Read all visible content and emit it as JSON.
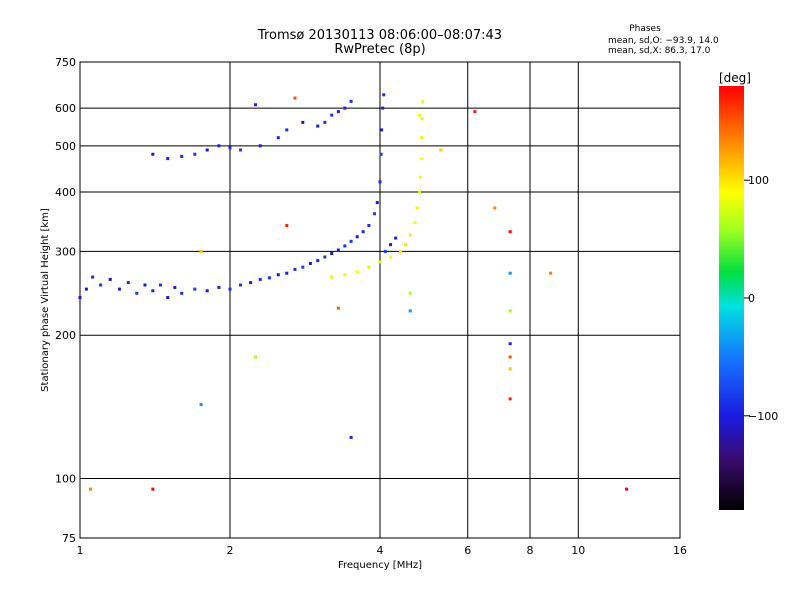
{
  "chart_data": {
    "type": "scatter",
    "title_line1": "Tromsø 20130113 08:06:00–08:07:43",
    "title_line2": "RwPretec (8p)",
    "xlabel": "Frequency [MHz]",
    "ylabel": "Stationary phase Virtual Height [km]",
    "x_scale": "log",
    "y_scale": "log",
    "xlim": [
      1,
      16
    ],
    "ylim": [
      75,
      750
    ],
    "x_ticks": [
      1,
      2,
      4,
      6,
      8,
      10,
      16
    ],
    "x_tick_labels": [
      "1",
      "2",
      "4",
      "6",
      "8",
      "10",
      "16"
    ],
    "y_ticks": [
      75,
      100,
      200,
      300,
      400,
      500,
      600,
      750
    ],
    "y_tick_labels": [
      "75",
      "100",
      "200",
      "300",
      "400",
      "500",
      "600",
      "750"
    ],
    "grid": true,
    "phases_header": "Phases",
    "stats_o": "mean, sd,O: −93.9, 14.0",
    "stats_x": "mean, sd,X:  86.3, 17.0",
    "colorbar": {
      "unit_label": "[deg]",
      "range": [
        -180,
        180
      ],
      "ticks": [
        100,
        0,
        -100
      ],
      "tick_labels": [
        "100",
        "0",
        "−100"
      ]
    },
    "series": [
      {
        "description_role": "O-mode lower trace",
        "phase_mean": -93.9,
        "points": [
          [
            1.0,
            240
          ],
          [
            1.03,
            250
          ],
          [
            1.06,
            265
          ],
          [
            1.1,
            255
          ],
          [
            1.15,
            262
          ],
          [
            1.2,
            250
          ],
          [
            1.25,
            258
          ],
          [
            1.3,
            245
          ],
          [
            1.35,
            255
          ],
          [
            1.4,
            248
          ],
          [
            1.45,
            255
          ],
          [
            1.5,
            240
          ],
          [
            1.55,
            252
          ],
          [
            1.6,
            245
          ],
          [
            1.7,
            250
          ],
          [
            1.8,
            248
          ],
          [
            1.9,
            252
          ],
          [
            2.0,
            250
          ],
          [
            2.1,
            255
          ],
          [
            2.2,
            258
          ],
          [
            2.3,
            262
          ],
          [
            2.4,
            264
          ],
          [
            2.5,
            268
          ],
          [
            2.6,
            270
          ],
          [
            2.7,
            275
          ],
          [
            2.8,
            278
          ],
          [
            2.9,
            283
          ],
          [
            3.0,
            287
          ],
          [
            3.1,
            292
          ],
          [
            3.2,
            297
          ],
          [
            3.3,
            302
          ],
          [
            3.4,
            308
          ],
          [
            3.5,
            315
          ],
          [
            3.6,
            322
          ],
          [
            3.7,
            330
          ],
          [
            3.8,
            340
          ],
          [
            3.9,
            360
          ],
          [
            3.95,
            380
          ],
          [
            4.0,
            420
          ],
          [
            4.02,
            480
          ],
          [
            4.03,
            540
          ],
          [
            4.05,
            600
          ],
          [
            4.07,
            640
          ],
          [
            4.1,
            300
          ],
          [
            4.2,
            310
          ],
          [
            4.3,
            320
          ]
        ]
      },
      {
        "description_role": "O-mode upper trace",
        "phase_mean": -93.9,
        "points": [
          [
            1.4,
            480
          ],
          [
            1.5,
            470
          ],
          [
            1.6,
            475
          ],
          [
            1.7,
            480
          ],
          [
            1.8,
            490
          ],
          [
            1.9,
            500
          ],
          [
            2.0,
            495
          ],
          [
            2.1,
            490
          ],
          [
            2.3,
            500
          ],
          [
            2.5,
            520
          ],
          [
            2.6,
            540
          ],
          [
            2.8,
            560
          ],
          [
            3.0,
            550
          ],
          [
            3.1,
            560
          ],
          [
            3.2,
            580
          ],
          [
            3.3,
            590
          ],
          [
            3.4,
            600
          ],
          [
            3.5,
            620
          ]
        ]
      },
      {
        "description_role": "X-mode trace",
        "phase_mean": 86.3,
        "points": [
          [
            3.2,
            265
          ],
          [
            3.4,
            268
          ],
          [
            3.6,
            272
          ],
          [
            3.8,
            278
          ],
          [
            4.0,
            285
          ],
          [
            4.2,
            292
          ],
          [
            4.4,
            300
          ],
          [
            4.5,
            310
          ],
          [
            4.6,
            325
          ],
          [
            4.7,
            345
          ],
          [
            4.75,
            370
          ],
          [
            4.8,
            400
          ],
          [
            4.82,
            430
          ],
          [
            4.84,
            470
          ],
          [
            4.85,
            520
          ],
          [
            4.86,
            570
          ],
          [
            4.87,
            620
          ],
          [
            4.8,
            580
          ]
        ]
      },
      {
        "description_role": "scattered echoes",
        "points": [
          [
            2.25,
            610
          ],
          [
            2.7,
            630
          ],
          [
            1.75,
            300
          ],
          [
            2.6,
            340
          ],
          [
            1.05,
            95
          ],
          [
            1.4,
            95
          ],
          [
            1.75,
            143
          ],
          [
            2.25,
            180
          ],
          [
            3.5,
            122
          ],
          [
            3.3,
            228
          ],
          [
            5.3,
            490
          ],
          [
            6.2,
            590
          ],
          [
            6.8,
            370
          ],
          [
            7.3,
            330
          ],
          [
            7.3,
            270
          ],
          [
            7.3,
            225
          ],
          [
            7.3,
            192
          ],
          [
            7.3,
            180
          ],
          [
            7.3,
            170
          ],
          [
            7.3,
            147
          ],
          [
            8.8,
            270
          ],
          [
            12.5,
            95
          ],
          [
            4.6,
            225
          ],
          [
            4.6,
            245
          ]
        ]
      }
    ]
  }
}
